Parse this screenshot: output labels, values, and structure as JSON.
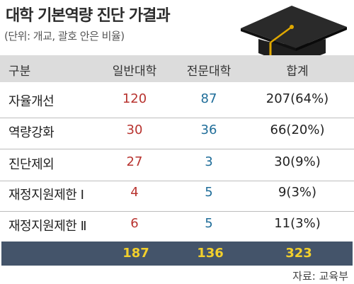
{
  "header": {
    "title": "대학 기본역량 진단 가결과",
    "subtitle": "(단위: 개교, 괄호 안은 비율)"
  },
  "table": {
    "columns": [
      "구분",
      "일반대학",
      "전문대학",
      "합계"
    ],
    "rows": [
      {
        "label": "자율개선",
        "general": "120",
        "vocational": "87",
        "total": "207(64%)"
      },
      {
        "label": "역량강화",
        "general": "30",
        "vocational": "36",
        "total": "66(20%)"
      },
      {
        "label": "진단제외",
        "general": "27",
        "vocational": "3",
        "total": "30(9%)"
      },
      {
        "label": "재정지원제한 Ⅰ",
        "general": "4",
        "vocational": "5",
        "total": "9(3%)"
      },
      {
        "label": "재정지원제한 Ⅱ",
        "general": "6",
        "vocational": "5",
        "total": "11(3%)"
      }
    ],
    "totals": {
      "general": "187",
      "vocational": "136",
      "total": "323"
    }
  },
  "source": "자료: 교육부",
  "colors": {
    "general": "#b8332f",
    "vocational": "#1f6d99",
    "total_bar": "#44546a",
    "total_text": "#f2cf2c"
  },
  "icons": {
    "decoration": "graduation-cap-icon"
  }
}
